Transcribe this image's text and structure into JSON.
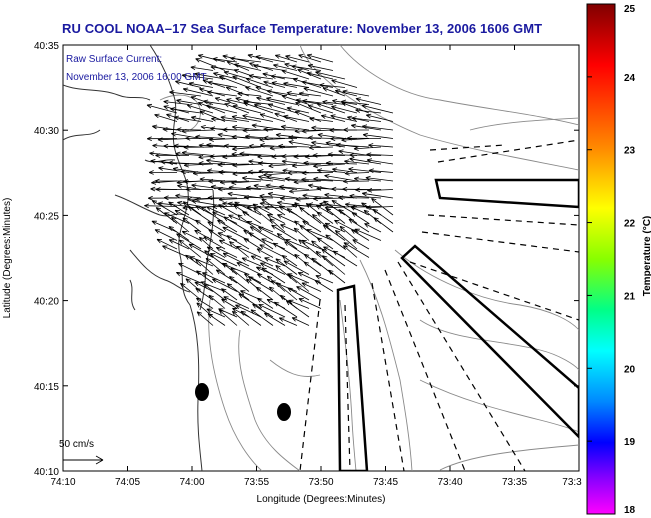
{
  "header": {
    "title": "RU COOL  NOAA–17  Sea Surface Temperature:  November 13, 2006 1606 GMT"
  },
  "map": {
    "annotation_line1": "Raw Surface Current:",
    "annotation_line2": "November 13, 2006 16:00 GMT",
    "scale_label": "50 cm/s",
    "x_axis_label": "Longitude (Degrees:Minutes)",
    "y_axis_label": "Latitude (Degrees:Minutes)",
    "x_ticks": [
      "74:10",
      "74:05",
      "74:00",
      "73:55",
      "73:50",
      "73:45",
      "73:40",
      "73:35",
      "73:3"
    ],
    "y_ticks": [
      "40:35",
      "40:30",
      "40:25",
      "40:20",
      "40:15",
      "40:10"
    ]
  },
  "colorbar": {
    "label": "Temperature (°C)",
    "ticks": [
      "25",
      "24",
      "23",
      "22",
      "21",
      "20",
      "19",
      "18"
    ],
    "min": 18,
    "max": 25
  },
  "colors": {
    "title": "#1a1aa0",
    "vectors": "#000000",
    "contours": "#888888",
    "coast": "#333333"
  }
}
